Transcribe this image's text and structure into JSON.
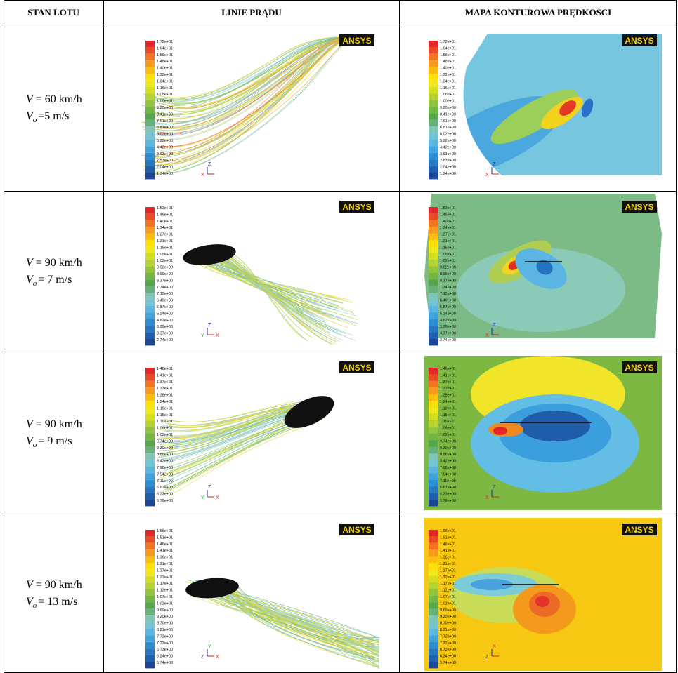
{
  "header": {
    "col1": "STAN LOTU",
    "col2": "LINIE PRĄDU",
    "col3": "MAPA KONTUROWA PRĘDKOŚCI"
  },
  "logo": "ANSYS",
  "rows": [
    {
      "v": {
        "symbol": "V",
        "text": "= 60 km/h"
      },
      "vo": {
        "symbol": "V",
        "subscript": "o",
        "text": "=5 m/s"
      },
      "legend": [
        "1.72e+01",
        "1.64e+01",
        "1.56e+01",
        "1.48e+01",
        "1.40e+01",
        "1.32e+01",
        "1.24e+01",
        "1.16e+01",
        "1.08e+01",
        "1.00e+01",
        "9.20e+00",
        "8.41e+00",
        "7.61e+00",
        "6.81e+00",
        "6.02e+00",
        "5.22e+00",
        "4.42e+00",
        "3.63e+00",
        "2.83e+00",
        "2.04e+00",
        "1.24e+00"
      ],
      "streamline_axes": [
        "Z",
        "X"
      ],
      "contour_axes": [
        "Z",
        "X"
      ]
    },
    {
      "v": {
        "symbol": "V",
        "text": "= 90 km/h"
      },
      "vo": {
        "symbol": "V",
        "subscript": "o",
        "text": "= 7 m/s"
      },
      "legend": [
        "1.52e+01",
        "1.46e+01",
        "1.40e+01",
        "1.34e+01",
        "1.27e+01",
        "1.21e+01",
        "1.15e+01",
        "1.09e+01",
        "1.02e+01",
        "9.62e+00",
        "8.99e+00",
        "8.37e+00",
        "7.74e+00",
        "7.12e+00",
        "6.49e+00",
        "5.87e+00",
        "5.24e+00",
        "4.62e+00",
        "3.99e+00",
        "3.37e+00",
        "2.74e+00"
      ],
      "streamline_axes": [
        "Z",
        "Y",
        "X"
      ],
      "contour_axes": [
        "Z",
        "X"
      ]
    },
    {
      "v": {
        "symbol": "V",
        "text": "= 90 km/h"
      },
      "vo": {
        "symbol": "V",
        "subscript": "o",
        "text": "= 9 m/s"
      },
      "legend": [
        "1.46e+01",
        "1.41e+01",
        "1.37e+01",
        "1.33e+01",
        "1.28e+01",
        "1.24e+01",
        "1.19e+01",
        "1.15e+01",
        "1.11e+01",
        "1.06e+01",
        "1.02e+01",
        "9.74e+00",
        "9.30e+00",
        "8.86e+00",
        "8.42e+00",
        "7.98e+00",
        "7.54e+00",
        "7.11e+00",
        "6.67e+00",
        "6.23e+00",
        "5.79e+00"
      ],
      "streamline_axes": [
        "Z",
        "Y",
        "X"
      ],
      "contour_axes": [
        "Z",
        "X"
      ]
    },
    {
      "v": {
        "symbol": "V",
        "text": "= 90 km/h"
      },
      "vo": {
        "symbol": "V",
        "subscript": "o",
        "text": "= 13 m/s"
      },
      "legend": [
        "1.56e+01",
        "1.51e+01",
        "1.46e+01",
        "1.41e+01",
        "1.36e+01",
        "1.31e+01",
        "1.27e+01",
        "1.22e+01",
        "1.17e+01",
        "1.12e+01",
        "1.07e+01",
        "1.02e+01",
        "9.69e+00",
        "9.20e+00",
        "8.70e+00",
        "8.21e+00",
        "7.72e+00",
        "7.22e+00",
        "6.73e+00",
        "6.24e+00",
        "5.74e+00"
      ],
      "streamline_axes": [
        "Y",
        "Z",
        "X"
      ],
      "contour_axes": [
        "X",
        "Z"
      ]
    }
  ]
}
